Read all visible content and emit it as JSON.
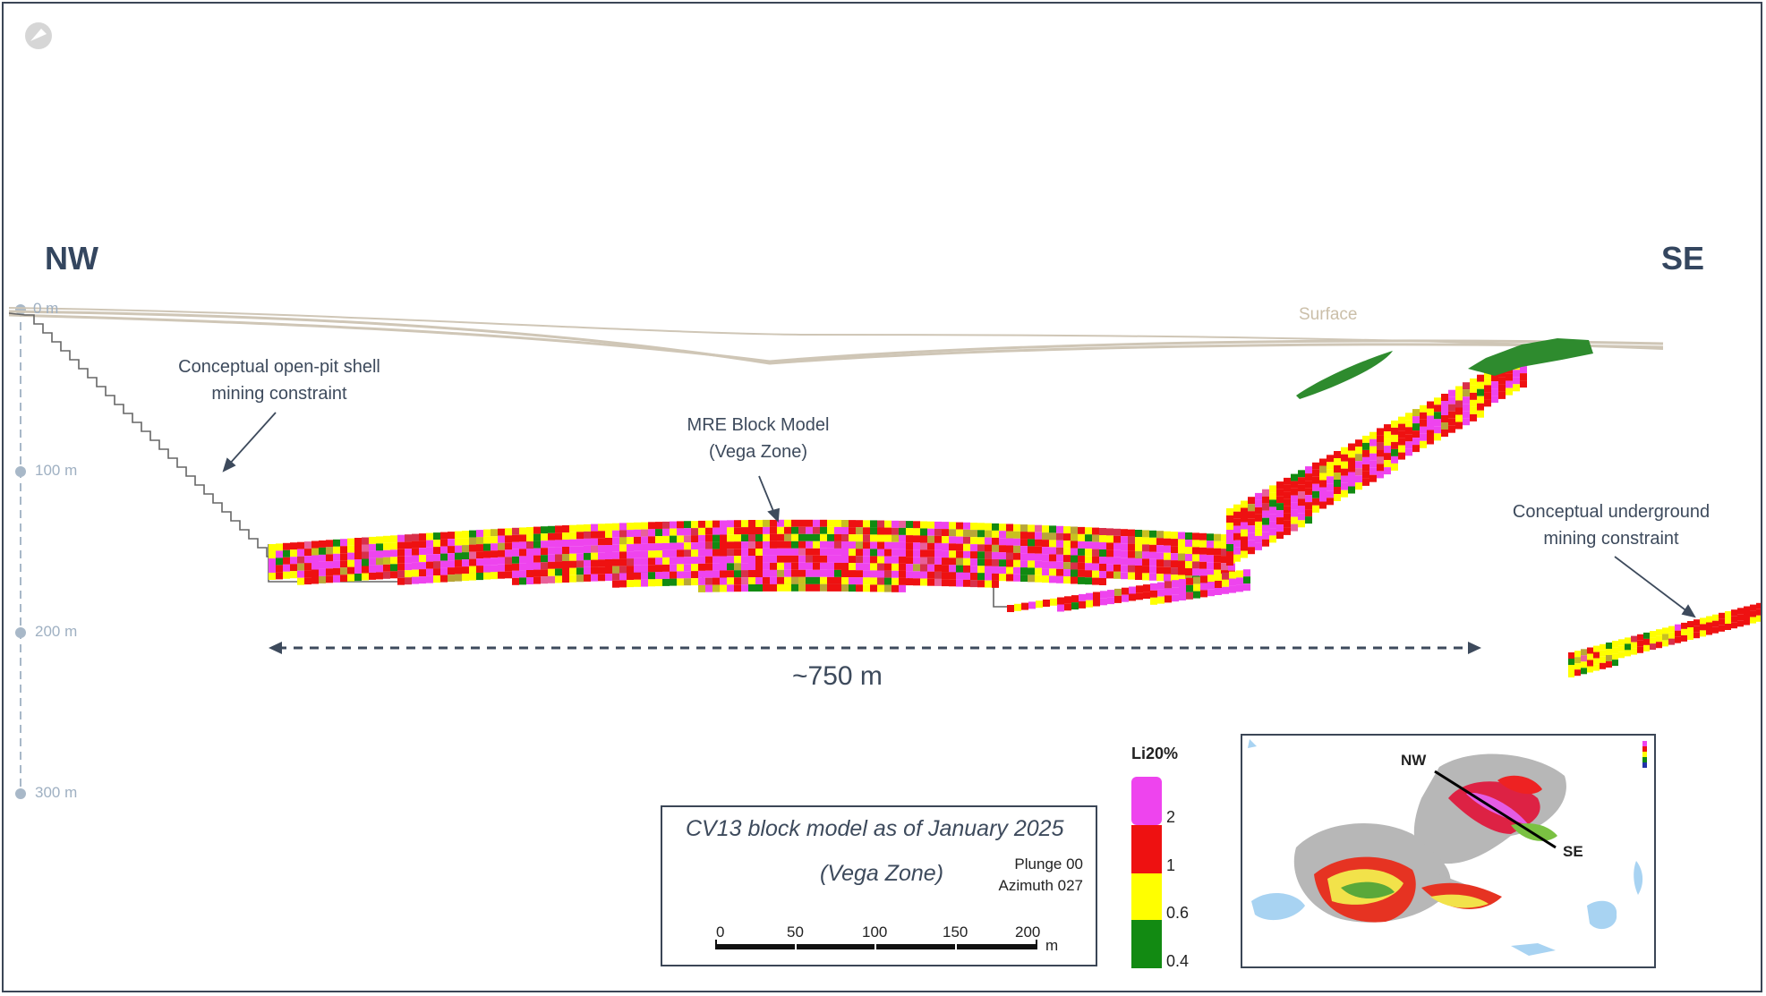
{
  "labels": {
    "nw": "NW",
    "se": "SE",
    "surface": "Surface",
    "open_pit": [
      "Conceptual open-pit shell",
      "mining constraint"
    ],
    "block_model": [
      "MRE Block Model",
      "(Vega Zone)"
    ],
    "underground": [
      "Conceptual underground",
      "mining constraint"
    ],
    "distance": "~750 m"
  },
  "depth_axis": {
    "ticks": [
      "0 m",
      "100 m",
      "200 m",
      "300 m"
    ]
  },
  "legend": {
    "title": "Li20%",
    "values": [
      "2",
      "1",
      "0.6",
      "0.4"
    ],
    "colors": [
      "#ee44ee",
      "#ee1111",
      "#ffff00",
      "#128a12"
    ]
  },
  "info_box": {
    "title": "CV13 block model as of January 2025",
    "subtitle": "(Vega Zone)",
    "plunge": "Plunge 00",
    "azimuth": "Azimuth 027",
    "scale_ticks": [
      "0",
      "50",
      "100",
      "150",
      "200"
    ],
    "scale_unit": "m"
  },
  "inset": {
    "nw": "NW",
    "se": "SE"
  },
  "colors": {
    "text": "#3d4a5c",
    "surface_line": "#cfc6b6",
    "pit_line": "#555555",
    "grey_shell": "#b7b7b7",
    "water": "#a8d3f2"
  }
}
